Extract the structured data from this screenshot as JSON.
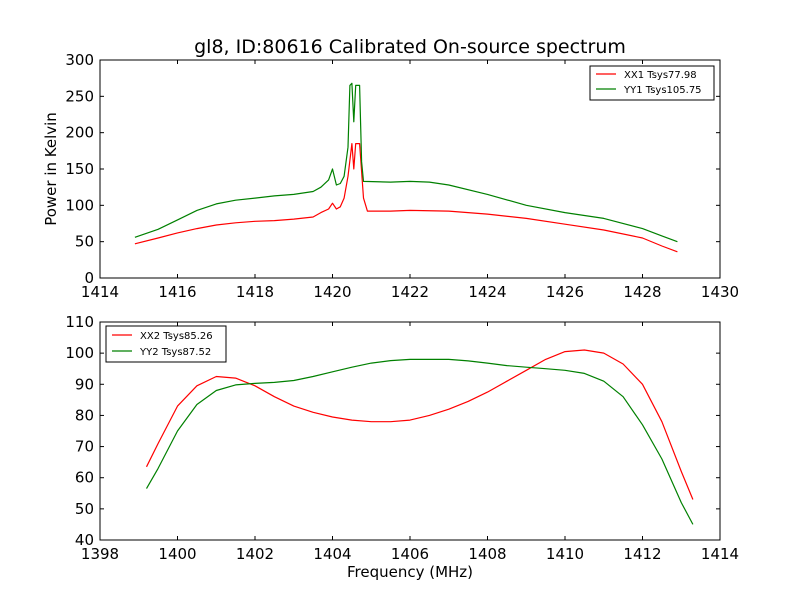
{
  "chart_data": [
    {
      "type": "line",
      "title": "gl8, ID:80616 Calibrated On-source spectrum",
      "xlabel": "",
      "ylabel": "Power in Kelvin",
      "xlim": [
        1414,
        1430
      ],
      "ylim": [
        0,
        300
      ],
      "xticks": [
        "1414",
        "1416",
        "1418",
        "1420",
        "1422",
        "1424",
        "1426",
        "1428",
        "1430"
      ],
      "yticks": [
        "0",
        "50",
        "100",
        "150",
        "200",
        "250",
        "300"
      ],
      "legend_position": "top-right",
      "grid": false,
      "series": [
        {
          "name": "XX1 Tsys77.98",
          "color": "#ff0000",
          "points": [
            [
              1414.9,
              47
            ],
            [
              1415.5,
              55
            ],
            [
              1416,
              62
            ],
            [
              1416.5,
              68
            ],
            [
              1417,
              73
            ],
            [
              1417.5,
              76
            ],
            [
              1418,
              78
            ],
            [
              1418.5,
              79
            ],
            [
              1419,
              81
            ],
            [
              1419.5,
              84
            ],
            [
              1419.7,
              90
            ],
            [
              1419.9,
              95
            ],
            [
              1420.0,
              103
            ],
            [
              1420.1,
              95
            ],
            [
              1420.2,
              98
            ],
            [
              1420.3,
              110
            ],
            [
              1420.4,
              140
            ],
            [
              1420.5,
              185
            ],
            [
              1420.55,
              150
            ],
            [
              1420.6,
              185
            ],
            [
              1420.7,
              185
            ],
            [
              1420.8,
              110
            ],
            [
              1420.9,
              92
            ],
            [
              1421.5,
              92
            ],
            [
              1422,
              93
            ],
            [
              1423,
              92
            ],
            [
              1424,
              88
            ],
            [
              1425,
              82
            ],
            [
              1426,
              74
            ],
            [
              1427,
              66
            ],
            [
              1428,
              55
            ],
            [
              1428.5,
              44
            ],
            [
              1428.9,
              36
            ]
          ]
        },
        {
          "name": "YY1 Tsys105.75",
          "color": "#008000",
          "points": [
            [
              1414.9,
              56
            ],
            [
              1415.5,
              67
            ],
            [
              1416,
              80
            ],
            [
              1416.5,
              93
            ],
            [
              1417,
              102
            ],
            [
              1417.5,
              107
            ],
            [
              1418,
              110
            ],
            [
              1418.5,
              113
            ],
            [
              1419,
              115
            ],
            [
              1419.5,
              119
            ],
            [
              1419.7,
              125
            ],
            [
              1419.9,
              135
            ],
            [
              1420.0,
              150
            ],
            [
              1420.1,
              128
            ],
            [
              1420.2,
              130
            ],
            [
              1420.3,
              140
            ],
            [
              1420.4,
              180
            ],
            [
              1420.45,
              265
            ],
            [
              1420.5,
              268
            ],
            [
              1420.55,
              215
            ],
            [
              1420.6,
              265
            ],
            [
              1420.7,
              265
            ],
            [
              1420.75,
              160
            ],
            [
              1420.8,
              133
            ],
            [
              1421.5,
              132
            ],
            [
              1422,
              133
            ],
            [
              1422.5,
              132
            ],
            [
              1423,
              128
            ],
            [
              1424,
              115
            ],
            [
              1425,
              100
            ],
            [
              1426,
              90
            ],
            [
              1427,
              82
            ],
            [
              1428,
              68
            ],
            [
              1428.5,
              58
            ],
            [
              1428.9,
              50
            ]
          ]
        }
      ]
    },
    {
      "type": "line",
      "title": "",
      "xlabel": "Frequency (MHz)",
      "ylabel": "",
      "xlim": [
        1398,
        1414
      ],
      "ylim": [
        40,
        110
      ],
      "xticks": [
        "1398",
        "1400",
        "1402",
        "1404",
        "1406",
        "1408",
        "1410",
        "1412",
        "1414"
      ],
      "yticks": [
        "40",
        "50",
        "60",
        "70",
        "80",
        "90",
        "100",
        "110"
      ],
      "legend_position": "top-left",
      "grid": false,
      "series": [
        {
          "name": "XX2 Tsys85.26",
          "color": "#ff0000",
          "points": [
            [
              1399.2,
              63.5
            ],
            [
              1399.5,
              71
            ],
            [
              1400,
              83
            ],
            [
              1400.5,
              89.5
            ],
            [
              1401,
              92.5
            ],
            [
              1401.5,
              92
            ],
            [
              1402,
              89.5
            ],
            [
              1402.5,
              86
            ],
            [
              1403,
              83
            ],
            [
              1403.5,
              81
            ],
            [
              1404,
              79.5
            ],
            [
              1404.5,
              78.5
            ],
            [
              1405,
              78
            ],
            [
              1405.5,
              78
            ],
            [
              1406,
              78.5
            ],
            [
              1406.5,
              80
            ],
            [
              1407,
              82
            ],
            [
              1407.5,
              84.5
            ],
            [
              1408,
              87.5
            ],
            [
              1408.5,
              91
            ],
            [
              1409,
              94.5
            ],
            [
              1409.5,
              98
            ],
            [
              1410,
              100.5
            ],
            [
              1410.5,
              101
            ],
            [
              1411,
              100
            ],
            [
              1411.5,
              96.5
            ],
            [
              1412,
              90
            ],
            [
              1412.5,
              78
            ],
            [
              1413,
              62
            ],
            [
              1413.3,
              53
            ]
          ]
        },
        {
          "name": "YY2 Tsys87.52",
          "color": "#008000",
          "points": [
            [
              1399.2,
              56.5
            ],
            [
              1399.5,
              63
            ],
            [
              1400,
              75
            ],
            [
              1400.5,
              83.5
            ],
            [
              1401,
              88
            ],
            [
              1401.5,
              89.8
            ],
            [
              1402,
              90.3
            ],
            [
              1402.5,
              90.6
            ],
            [
              1403,
              91.2
            ],
            [
              1403.5,
              92.5
            ],
            [
              1404,
              94
            ],
            [
              1404.5,
              95.5
            ],
            [
              1405,
              96.8
            ],
            [
              1405.5,
              97.6
            ],
            [
              1406,
              98
            ],
            [
              1406.5,
              98
            ],
            [
              1407,
              98
            ],
            [
              1407.5,
              97.5
            ],
            [
              1408,
              96.8
            ],
            [
              1408.5,
              96
            ],
            [
              1409,
              95.5
            ],
            [
              1409.5,
              95
            ],
            [
              1410,
              94.5
            ],
            [
              1410.5,
              93.5
            ],
            [
              1411,
              91
            ],
            [
              1411.5,
              86
            ],
            [
              1412,
              77
            ],
            [
              1412.5,
              66
            ],
            [
              1413,
              52
            ],
            [
              1413.3,
              45
            ]
          ]
        }
      ]
    }
  ]
}
